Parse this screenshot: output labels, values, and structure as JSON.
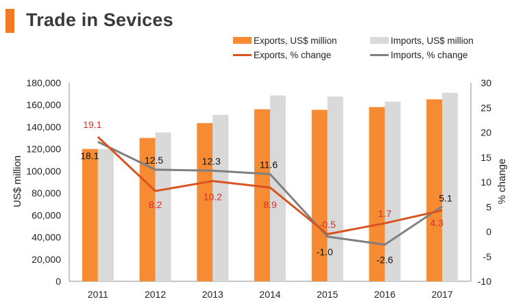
{
  "header": {
    "title": "Trade in Sevices",
    "accent_color": "#f07b20"
  },
  "legend": {
    "exports_bar": "Exports, US$ million",
    "imports_bar": "Imports, US$ million",
    "exports_line": "Exports, % change",
    "imports_line": "Imports, % change"
  },
  "colors": {
    "exports_bar": "#f68b33",
    "imports_bar": "#d9d9d9",
    "exports_line": "#d9531e",
    "imports_line": "#7f7f7f",
    "exports_label": "#d9302c",
    "imports_label": "#111111",
    "axis": "#8c8c8c"
  },
  "chart_data": {
    "type": "bar",
    "title": "Trade in Sevices",
    "categories": [
      "2011",
      "2012",
      "2013",
      "2014",
      "2015",
      "2016",
      "2017"
    ],
    "ylabel": "US$ million",
    "y2label": "% change",
    "ylim": [
      0,
      180000
    ],
    "y2lim": [
      -10,
      30
    ],
    "yticks": [
      "0",
      "20,000",
      "40,000",
      "60,000",
      "80,000",
      "100,000",
      "120,000",
      "140,000",
      "160,000",
      "180,000"
    ],
    "y2ticks": [
      "-10",
      "-5",
      "0",
      "5",
      "10",
      "15",
      "20",
      "25",
      "30"
    ],
    "series": [
      {
        "name": "Exports, US$ million",
        "kind": "bar",
        "axis": "left",
        "values": [
          120000,
          130000,
          143500,
          156000,
          155500,
          158000,
          165000
        ]
      },
      {
        "name": "Imports, US$ million",
        "kind": "bar",
        "axis": "left",
        "values": [
          120000,
          135000,
          151000,
          168500,
          167500,
          163000,
          171000
        ]
      },
      {
        "name": "Exports, % change",
        "kind": "line",
        "axis": "right",
        "values": [
          19.1,
          8.2,
          10.2,
          8.9,
          -0.5,
          1.7,
          4.3
        ],
        "labels": [
          "19.1",
          "8.2",
          "10.2",
          "8.9",
          "-0.5",
          "1.7",
          "4.3"
        ]
      },
      {
        "name": "Imports, % change",
        "kind": "line",
        "axis": "right",
        "values": [
          18.1,
          12.5,
          12.3,
          11.6,
          -1.0,
          -2.6,
          5.1
        ],
        "labels": [
          "18.1",
          "12.5",
          "12.3",
          "11.6",
          "-1.0",
          "-2.6",
          "5.1"
        ]
      }
    ],
    "grid": false,
    "legend_position": "top-right"
  }
}
